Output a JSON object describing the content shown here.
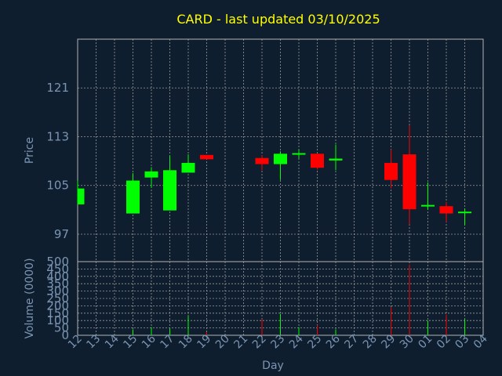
{
  "chart_data": {
    "type": "candlestick",
    "title": "CARD - last updated 03/10/2025",
    "xlabel": "Day",
    "price_panel": {
      "ylabel": "Price",
      "yticks": [
        97,
        105,
        113,
        121
      ],
      "ylim": [
        92.5,
        129
      ],
      "grid": true
    },
    "volume_panel": {
      "ylabel": "Volume (0000)",
      "yticks": [
        0,
        50,
        100,
        150,
        200,
        250,
        300,
        350,
        400,
        450,
        500
      ],
      "ylim": [
        0,
        500
      ],
      "grid": true
    },
    "x_ticks": [
      "12",
      "13",
      "14",
      "15",
      "16",
      "17",
      "18",
      "19",
      "20",
      "21",
      "22",
      "23",
      "24",
      "25",
      "26",
      "27",
      "28",
      "29",
      "30",
      "01",
      "02",
      "03",
      "04"
    ],
    "candles": [
      {
        "day": "12",
        "open": 101.9,
        "high": 105.8,
        "low": 101.9,
        "close": 104.5,
        "volume": 0
      },
      {
        "day": "15",
        "open": 100.4,
        "high": 107.0,
        "low": 100.4,
        "close": 105.8,
        "volume": 40
      },
      {
        "day": "16",
        "open": 106.3,
        "high": 108.0,
        "low": 104.6,
        "close": 107.3,
        "volume": 55
      },
      {
        "day": "17",
        "open": 100.9,
        "high": 109.9,
        "low": 100.9,
        "close": 107.5,
        "volume": 45
      },
      {
        "day": "18",
        "open": 107.1,
        "high": 110.1,
        "low": 107.1,
        "close": 108.7,
        "volume": 130
      },
      {
        "day": "19",
        "open": 110.0,
        "high": 110.0,
        "low": 109.3,
        "close": 109.3,
        "volume": 20
      },
      {
        "day": "22",
        "open": 109.5,
        "high": 110.0,
        "low": 107.5,
        "close": 108.5,
        "volume": 110
      },
      {
        "day": "23",
        "open": 108.5,
        "high": 110.6,
        "low": 105.9,
        "close": 110.2,
        "volume": 145
      },
      {
        "day": "24",
        "open": 110.3,
        "high": 110.9,
        "low": 109.4,
        "close": 110.3,
        "volume": 55
      },
      {
        "day": "25",
        "open": 110.2,
        "high": 110.2,
        "low": 107.6,
        "close": 107.9,
        "volume": 70
      },
      {
        "day": "26",
        "open": 109.1,
        "high": 111.7,
        "low": 107.5,
        "close": 109.4,
        "volume": 40
      },
      {
        "day": "29",
        "open": 108.7,
        "high": 110.9,
        "low": 104.5,
        "close": 105.9,
        "volume": 190
      },
      {
        "day": "30",
        "open": 110.1,
        "high": 114.9,
        "low": 98.6,
        "close": 101.1,
        "volume": 480
      },
      {
        "day": "01",
        "open": 101.8,
        "high": 105.5,
        "low": 101.0,
        "close": 101.8,
        "volume": 100
      },
      {
        "day": "02",
        "open": 101.6,
        "high": 102.3,
        "low": 99.0,
        "close": 100.4,
        "volume": 140
      },
      {
        "day": "03",
        "open": 100.5,
        "high": 101.2,
        "low": 98.5,
        "close": 100.7,
        "volume": 110
      }
    ],
    "colors": {
      "background": "#0f1e2e",
      "axis": "#b3b3b3",
      "grid": "#9a9a9a",
      "up": "#00ff00",
      "down": "#ff0000",
      "title": "#ffff00",
      "label": "#7a95b3"
    }
  }
}
